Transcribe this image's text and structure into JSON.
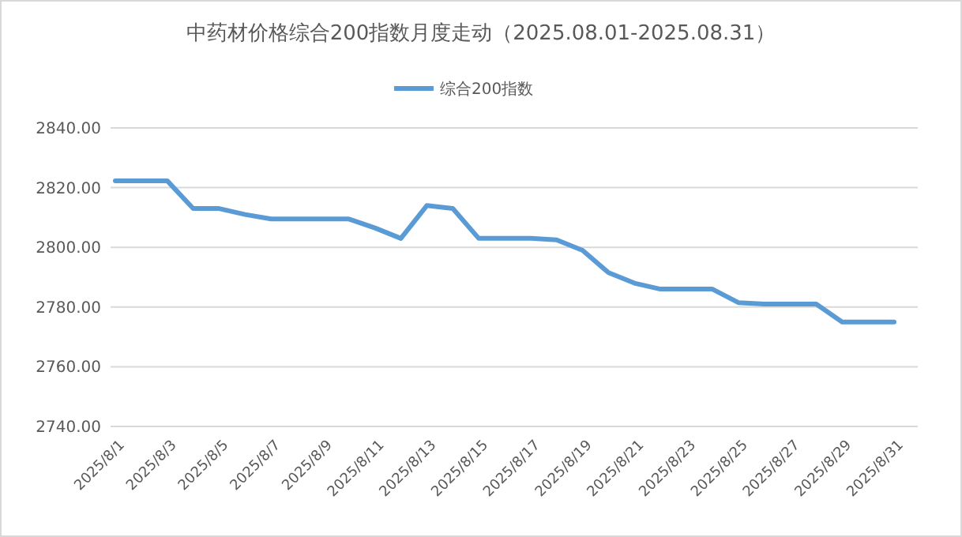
{
  "chart_data": {
    "type": "line",
    "title": "中药材价格综合200指数月度走动（2025.08.01-2025.08.31）",
    "categories": [
      "2025/8/1",
      null,
      "2025/8/3",
      null,
      "2025/8/5",
      null,
      "2025/8/7",
      null,
      "2025/8/9",
      null,
      "2025/8/11",
      null,
      "2025/8/13",
      null,
      "2025/8/15",
      null,
      "2025/8/17",
      null,
      "2025/8/19",
      null,
      "2025/8/21",
      null,
      "2025/8/23",
      null,
      "2025/8/25",
      null,
      "2025/8/27",
      null,
      "2025/8/29",
      null,
      "2025/8/31"
    ],
    "series": [
      {
        "name": "综合200指数",
        "color": "#5b9bd5",
        "values": [
          2822.3,
          2822.3,
          2822.3,
          2813,
          2813,
          2811,
          2809.5,
          2809.5,
          2809.5,
          2809.5,
          2806.5,
          2803,
          2814,
          2813,
          2803,
          2803,
          2803,
          2802.5,
          2799,
          2791.5,
          2788,
          2786,
          2786,
          2786,
          2781.5,
          2781,
          2781,
          2781,
          2775,
          2775,
          2775
        ]
      }
    ],
    "ylim": [
      2740,
      2840
    ],
    "yticks": [
      {
        "value": 2740,
        "label": "2740.00"
      },
      {
        "value": 2760,
        "label": "2760.00"
      },
      {
        "value": 2780,
        "label": "2780.00"
      },
      {
        "value": 2800,
        "label": "2800.00"
      },
      {
        "value": 2820,
        "label": "2820.00"
      },
      {
        "value": 2840,
        "label": "2840.00"
      }
    ],
    "grid": "y",
    "legend": "top",
    "marker": "none",
    "line_style": "solid"
  }
}
